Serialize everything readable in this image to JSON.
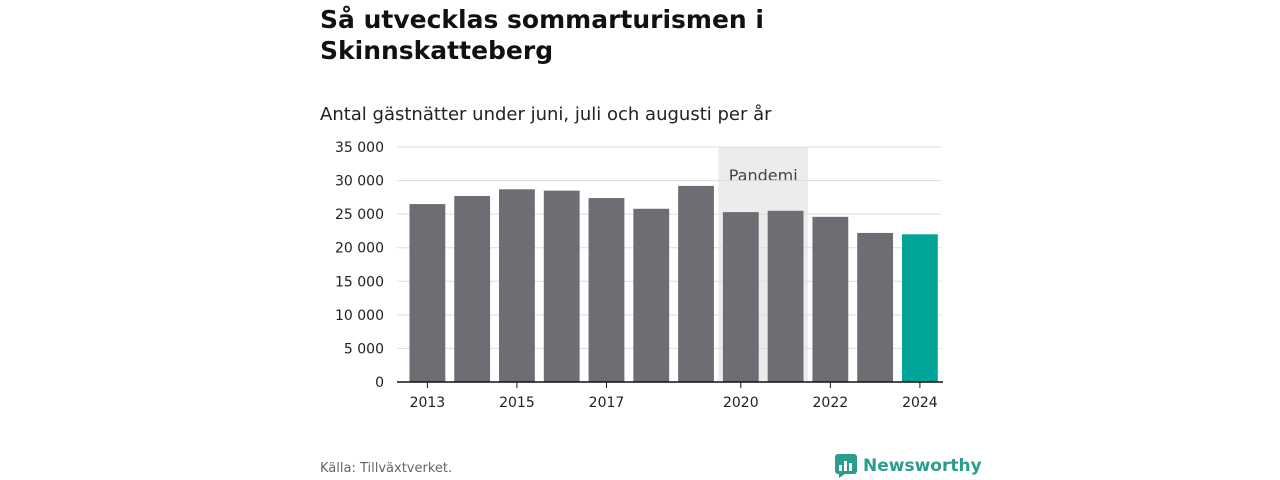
{
  "title": "Så utvecklas sommarturismen i Skinnskatteberg",
  "subtitle": "Antal gästnätter under juni, juli och augusti per år",
  "source": "Källa: Tillväxtverket.",
  "brand": "Newsworthy",
  "colors": {
    "bar": "#6e6d74",
    "highlight": "#00a59a",
    "shade": "#ececec",
    "grid": "#dddddd",
    "brand": "#2a9d8f"
  },
  "chart_data": {
    "type": "bar",
    "categories": [
      "2013",
      "2014",
      "2015",
      "2016",
      "2017",
      "2018",
      "2019",
      "2020",
      "2021",
      "2022",
      "2023",
      "2024"
    ],
    "x_tick_labels": [
      "2013",
      "2015",
      "2017",
      "2020",
      "2022",
      "2024"
    ],
    "values": [
      26500,
      27700,
      28700,
      28500,
      27400,
      25800,
      29200,
      25300,
      25500,
      24600,
      22200,
      22000
    ],
    "highlight_category": "2024",
    "ylim": [
      0,
      35000
    ],
    "y_ticks": [
      0,
      5000,
      10000,
      15000,
      20000,
      25000,
      30000,
      35000
    ],
    "y_tick_labels": [
      "0",
      "5 000",
      "10 000",
      "15 000",
      "20 000",
      "25 000",
      "30 000",
      "35 000"
    ],
    "shaded_region": {
      "from": "2020",
      "to": "2021",
      "label": "Pandemi"
    },
    "grid": true,
    "xlabel": "",
    "ylabel": ""
  }
}
